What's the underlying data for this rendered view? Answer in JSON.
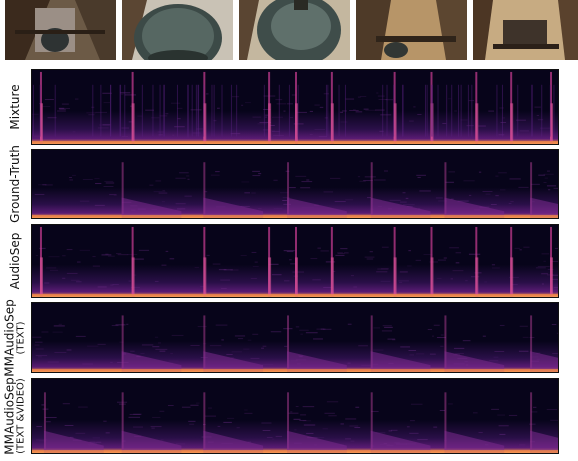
{
  "figure": {
    "frames": [
      {
        "name": "frame-1"
      },
      {
        "name": "frame-2"
      },
      {
        "name": "frame-3"
      },
      {
        "name": "frame-4"
      },
      {
        "name": "frame-5"
      }
    ],
    "rows": [
      {
        "label": "Mixture",
        "sublabel": ""
      },
      {
        "label": "Ground-Truth",
        "sublabel": ""
      },
      {
        "label": "AudioSep",
        "sublabel": ""
      },
      {
        "label": "MMAudioSep",
        "sublabel": "(TEXT)"
      },
      {
        "label": "MMAudioSep",
        "sublabel": "(TEXT &VIDEO)"
      }
    ]
  },
  "colors": {
    "spec_dark": "#07041a",
    "spec_band": "#5a1b74",
    "spec_bright": "#f08a4b",
    "spec_hot": "#fbd38d"
  }
}
